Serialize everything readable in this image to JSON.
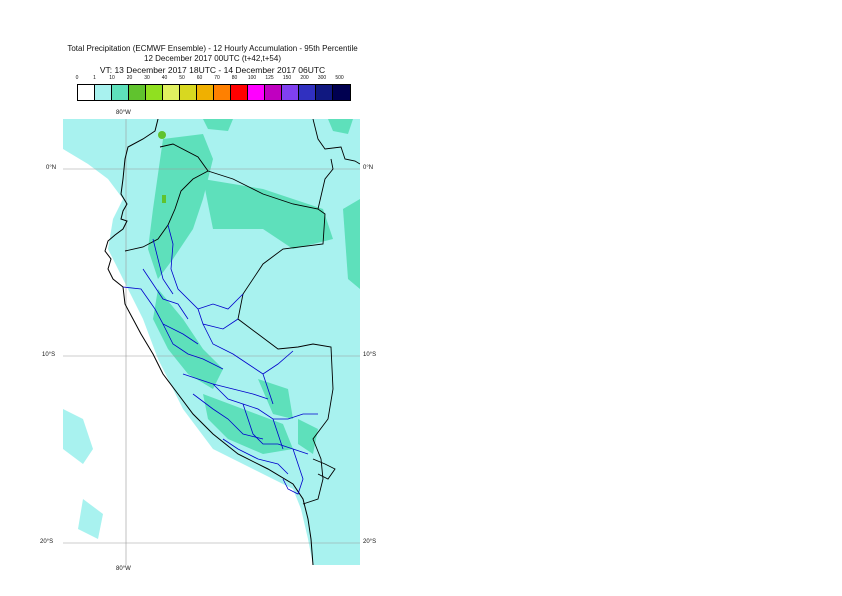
{
  "title": {
    "line1": "Total Precipitation (ECMWF Ensemble) - 12 Hourly Accumulation - 95th Percentile",
    "line2": "12 December 2017 00UTC (t+42,t+54)",
    "line3": "VT: 13 December 2017 18UTC - 14 December 2017 06UTC"
  },
  "legend": {
    "thresholds": [
      "0",
      "1",
      "10",
      "20",
      "30",
      "40",
      "50",
      "60",
      "70",
      "80",
      "100",
      "125",
      "150",
      "200",
      "300",
      "500"
    ],
    "colors": [
      "#ffffff",
      "#a8f2ef",
      "#5ee0bb",
      "#60c32e",
      "#90e020",
      "#e0f060",
      "#d8d820",
      "#f0b000",
      "#ff8000",
      "#ff0000",
      "#ff00ff",
      "#c000c0",
      "#8040f0",
      "#3030c0",
      "#101880",
      "#000050"
    ]
  },
  "axes": {
    "lon_top": "80°W",
    "lon_bottom": "80°W",
    "lat_left": [
      "0°N",
      "10°S",
      "20°S"
    ],
    "lat_right": [
      "0°N",
      "10°S",
      "20°S"
    ]
  },
  "map_colors": {
    "ocean": "#ffffff",
    "light": "#a8f2ef",
    "medium": "#5ee0bb",
    "heavy": "#60c32e",
    "coast": "#000000",
    "borders": "#0000cc",
    "grid": "#888888"
  }
}
